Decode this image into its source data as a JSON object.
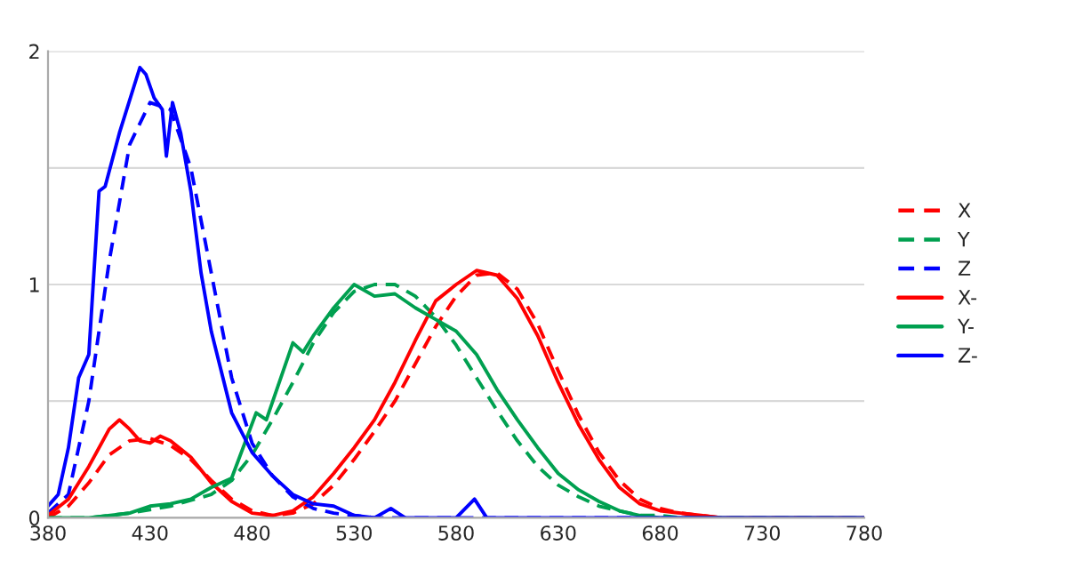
{
  "chart_data": {
    "type": "line",
    "xlim": [
      380,
      780
    ],
    "xticks": [
      380,
      430,
      480,
      530,
      580,
      630,
      680,
      730,
      780
    ],
    "ylim": [
      0,
      2
    ],
    "yticks": [
      0,
      {
        "value": 0.5,
        "label": null
      },
      1,
      {
        "value": 1.5,
        "label": null
      },
      2
    ],
    "grid": "y",
    "legend": "right",
    "marker": "none",
    "series": [
      {
        "name": "X",
        "color": "#ff0000",
        "line_style": "dashed",
        "x": [
          380,
          390,
          400,
          410,
          420,
          430,
          440,
          450,
          460,
          470,
          480,
          490,
          500,
          510,
          520,
          530,
          540,
          550,
          560,
          570,
          580,
          590,
          600,
          610,
          620,
          630,
          640,
          650,
          660,
          670,
          680,
          690,
          700,
          710,
          780
        ],
        "values": [
          0,
          0.05,
          0.15,
          0.27,
          0.33,
          0.34,
          0.31,
          0.25,
          0.16,
          0.08,
          0.03,
          0.01,
          0.02,
          0.06,
          0.14,
          0.25,
          0.37,
          0.5,
          0.66,
          0.82,
          0.95,
          1.04,
          1.05,
          0.98,
          0.83,
          0.63,
          0.44,
          0.28,
          0.16,
          0.08,
          0.04,
          0.02,
          0.01,
          0,
          0
        ]
      },
      {
        "name": "Y",
        "color": "#00a050",
        "line_style": "dashed",
        "x": [
          380,
          400,
          420,
          440,
          460,
          470,
          480,
          490,
          500,
          510,
          520,
          530,
          540,
          550,
          560,
          570,
          580,
          590,
          600,
          610,
          620,
          630,
          640,
          650,
          660,
          670,
          680,
          690,
          780
        ],
        "values": [
          0,
          0,
          0.02,
          0.05,
          0.1,
          0.16,
          0.27,
          0.42,
          0.58,
          0.75,
          0.88,
          0.97,
          1.0,
          1.0,
          0.95,
          0.86,
          0.74,
          0.6,
          0.46,
          0.33,
          0.22,
          0.14,
          0.09,
          0.05,
          0.03,
          0.01,
          0.01,
          0,
          0
        ]
      },
      {
        "name": "Z",
        "color": "#0000ff",
        "line_style": "dashed",
        "x": [
          380,
          390,
          400,
          410,
          420,
          430,
          440,
          450,
          460,
          470,
          480,
          490,
          500,
          510,
          520,
          530,
          540,
          780
        ],
        "values": [
          0.02,
          0.1,
          0.5,
          1.1,
          1.6,
          1.78,
          1.75,
          1.5,
          1.05,
          0.6,
          0.32,
          0.18,
          0.09,
          0.04,
          0.02,
          0.01,
          0,
          0
        ]
      },
      {
        "name": "X-",
        "color": "#ff0000",
        "line_style": "solid",
        "x": [
          380,
          390,
          400,
          410,
          415,
          420,
          425,
          430,
          435,
          440,
          450,
          460,
          470,
          480,
          490,
          500,
          510,
          520,
          530,
          540,
          550,
          560,
          570,
          580,
          590,
          600,
          610,
          620,
          630,
          640,
          650,
          660,
          670,
          680,
          690,
          700,
          710,
          780
        ],
        "values": [
          0.01,
          0.08,
          0.22,
          0.38,
          0.42,
          0.38,
          0.33,
          0.32,
          0.35,
          0.33,
          0.26,
          0.15,
          0.07,
          0.02,
          0.01,
          0.03,
          0.09,
          0.19,
          0.3,
          0.42,
          0.58,
          0.76,
          0.93,
          1.0,
          1.06,
          1.04,
          0.94,
          0.78,
          0.58,
          0.4,
          0.25,
          0.13,
          0.06,
          0.03,
          0.02,
          0.01,
          0,
          0
        ]
      },
      {
        "name": "Y-",
        "color": "#00a050",
        "line_style": "solid",
        "x": [
          380,
          400,
          420,
          430,
          440,
          450,
          460,
          470,
          482,
          487,
          500,
          505,
          510,
          520,
          530,
          540,
          550,
          560,
          570,
          580,
          590,
          600,
          610,
          620,
          630,
          640,
          650,
          660,
          670,
          680,
          780
        ],
        "values": [
          0,
          0,
          0.02,
          0.05,
          0.06,
          0.08,
          0.13,
          0.17,
          0.45,
          0.42,
          0.75,
          0.71,
          0.78,
          0.9,
          1.0,
          0.95,
          0.96,
          0.9,
          0.85,
          0.8,
          0.7,
          0.55,
          0.42,
          0.3,
          0.19,
          0.12,
          0.07,
          0.03,
          0.01,
          0,
          0
        ]
      },
      {
        "name": "Z-",
        "color": "#0000ff",
        "line_style": "solid",
        "x": [
          380,
          385,
          390,
          395,
          400,
          405,
          408,
          415,
          425,
          428,
          432,
          436,
          438,
          441,
          445,
          450,
          455,
          460,
          470,
          480,
          490,
          500,
          510,
          520,
          530,
          540,
          548,
          555,
          580,
          589,
          595,
          780
        ],
        "values": [
          0.05,
          0.1,
          0.3,
          0.6,
          0.7,
          1.4,
          1.42,
          1.65,
          1.93,
          1.9,
          1.8,
          1.75,
          1.55,
          1.78,
          1.65,
          1.4,
          1.05,
          0.8,
          0.45,
          0.28,
          0.18,
          0.1,
          0.06,
          0.05,
          0.01,
          0,
          0.04,
          0,
          0,
          0.08,
          0,
          0
        ]
      }
    ]
  }
}
